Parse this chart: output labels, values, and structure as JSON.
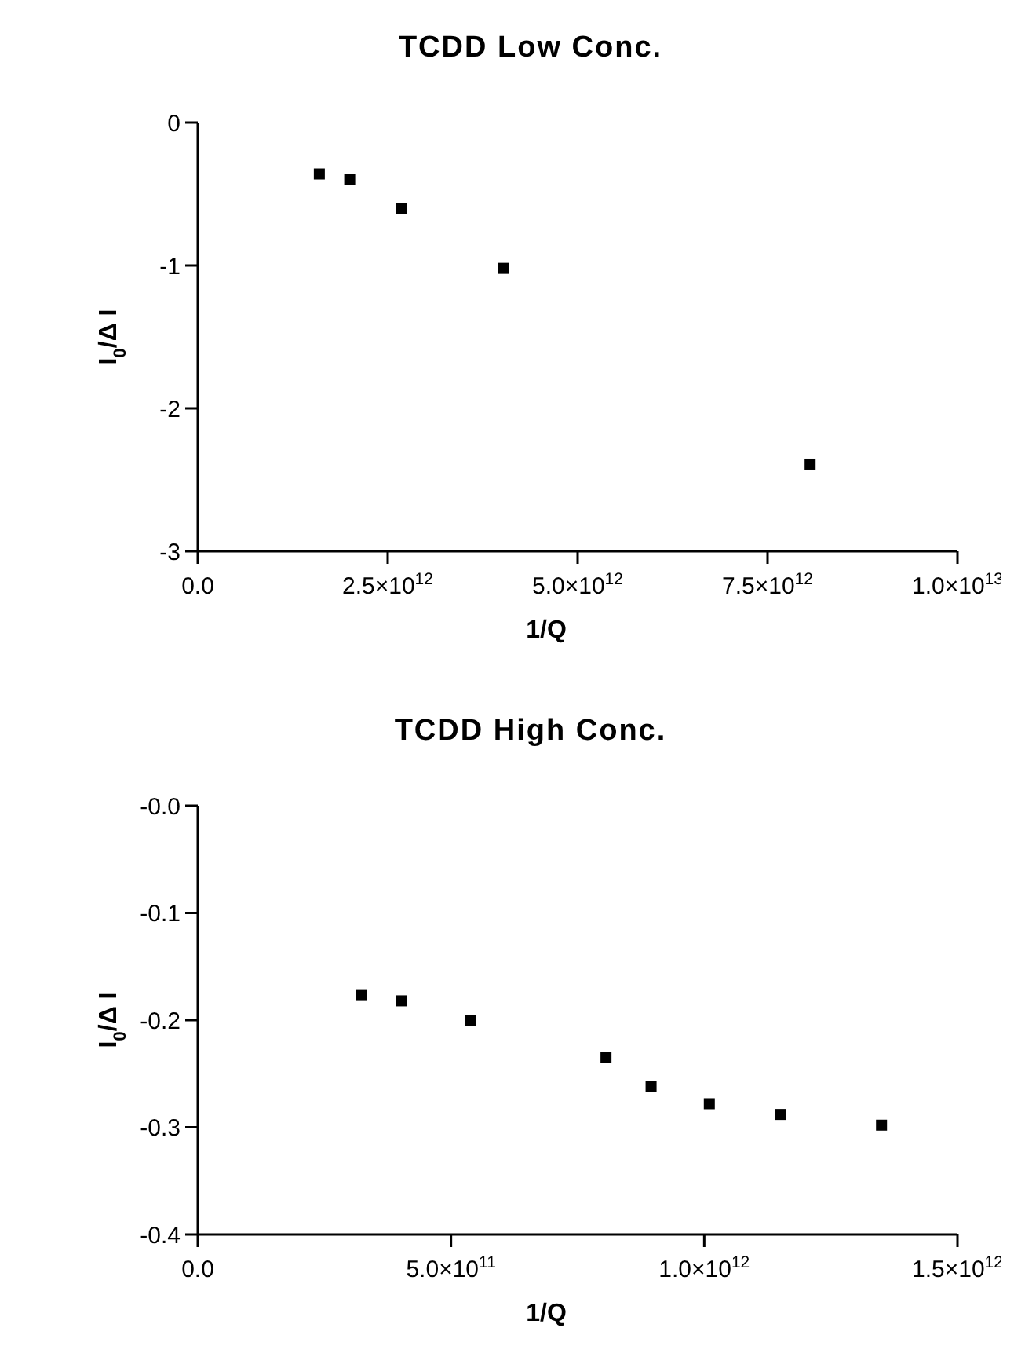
{
  "chart_data": [
    {
      "type": "scatter",
      "title": "TCDD Low Conc.",
      "xlabel": "1/Q",
      "ylabel": "I$_{0}$/Δ I",
      "marker": "square",
      "grid": false,
      "x": [
        1600000000000.0,
        2000000000000.0,
        2680000000000.0,
        4020000000000.0,
        8060000000000.0
      ],
      "values": [
        -0.36,
        -0.4,
        -0.6,
        -1.02,
        -2.39
      ],
      "color": "#000000",
      "xlim": [
        0,
        10000000000000.0
      ],
      "xticks": [
        {
          "value": 0,
          "label": "0.0"
        },
        {
          "value": 2500000000000.0,
          "label": "2.5×10$^{12}$"
        },
        {
          "value": 5000000000000.0,
          "label": "5.0×10$^{12}$"
        },
        {
          "value": 7500000000000.0,
          "label": "7.5×10$^{12}$"
        },
        {
          "value": 10000000000000.0,
          "label": "1.0×10$^{13}$"
        }
      ],
      "ylim": [
        -3,
        0
      ],
      "yticks": [
        -3,
        -2,
        -1,
        0
      ]
    },
    {
      "type": "scatter",
      "title": "TCDD High Conc.",
      "xlabel": "1/Q",
      "ylabel": "I$_{0}$/Δ I",
      "marker": "square",
      "grid": false,
      "x": [
        323000000000.0,
        402000000000.0,
        538000000000.0,
        806000000000.0,
        895000000000.0,
        1010000000000.0,
        1150000000000.0,
        1350000000000.0
      ],
      "values": [
        -0.177,
        -0.182,
        -0.2,
        -0.235,
        -0.262,
        -0.278,
        -0.288,
        -0.298
      ],
      "color": "#000000",
      "xlim": [
        0,
        1500000000000.0
      ],
      "xticks": [
        {
          "value": 0,
          "label": "0.0"
        },
        {
          "value": 500000000000.0,
          "label": "5.0×10$^{11}$"
        },
        {
          "value": 1000000000000.0,
          "label": "1.0×10$^{12}$"
        },
        {
          "value": 1500000000000.0,
          "label": "1.5×10$^{12}$"
        }
      ],
      "ylim": [
        -0.4,
        0
      ],
      "yticks": [
        {
          "value": -0.4,
          "label": "-0.4"
        },
        {
          "value": -0.3,
          "label": "-0.3"
        },
        {
          "value": -0.2,
          "label": "-0.2"
        },
        {
          "value": -0.1,
          "label": "-0.1"
        },
        {
          "value": 0,
          "label": "-0.0"
        }
      ]
    }
  ]
}
